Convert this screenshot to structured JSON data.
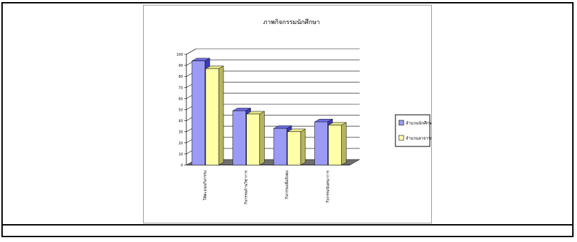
{
  "chart_data": {
    "type": "bar",
    "title": "ภาพกิจกรรมนักศึกษา",
    "categories": [
      "ให้คะแนนกิจกรรม",
      "กิจกรรมด้านวิชาการ",
      "กิจกรรมเพื่อสังคม",
      "กิจกรรมนันทนาการ"
    ],
    "series": [
      {
        "name": "จำนวนนักศึกษาปี",
        "values": [
          94,
          49,
          33,
          39
        ]
      },
      {
        "name": "จำนวนอาจารย์/ครู",
        "values": [
          87,
          46,
          30,
          36
        ]
      }
    ],
    "ylim": [
      0,
      100
    ],
    "yticks": [
      0,
      10,
      20,
      30,
      40,
      50,
      60,
      70,
      80,
      90,
      100
    ],
    "yticklabels": [
      "0",
      "10",
      "20",
      "30",
      "40",
      "50",
      "60",
      "70",
      "80",
      "90",
      "100"
    ],
    "grid": true,
    "legend_position": "right"
  },
  "colors": {
    "series1_front": "#9b9bf5",
    "series1_side": "#3c3cb4",
    "series1_top": "#6b6be0",
    "series2_front": "#ffffa8",
    "series2_side": "#b5b560",
    "series2_top": "#e6e68a",
    "floor": "#6e6e6e",
    "grid": "#000000"
  }
}
